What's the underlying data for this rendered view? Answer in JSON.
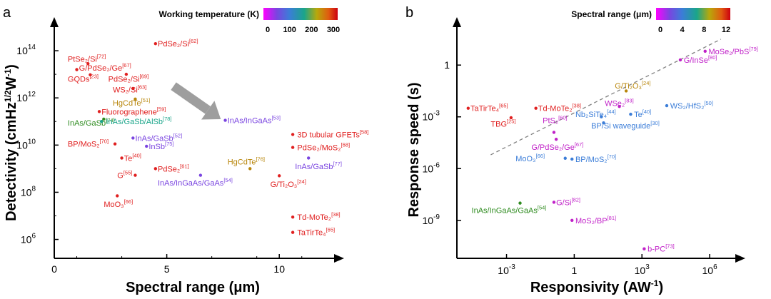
{
  "colors": {
    "red": "#e02020",
    "purple": "#7a45e0",
    "darkgold": "#b8860b",
    "green": "#2e8b1f",
    "teal": "#1aa58a",
    "blue": "#3b7dd8",
    "magenta": "#c020c8",
    "arrow": "#9e9e9e",
    "fitline": "#808080"
  },
  "chart_data": [
    {
      "panel_label": "a",
      "type": "scatter",
      "xlabel": "Spectral range (μm)",
      "ylabel": "Detectivity (cmHz¹ᐟ²W⁻¹)",
      "ylabel_parts": [
        "Detectivity (cmHz",
        "1/2",
        "W",
        "-1",
        ")"
      ],
      "xlim": [
        0,
        12.5
      ],
      "ylim_log10": [
        5.2,
        15
      ],
      "x_ticks": [
        0,
        5,
        10
      ],
      "x_tick_labels": [
        "0",
        "5",
        "10"
      ],
      "y_ticks_exp": [
        6,
        8,
        10,
        12,
        14
      ],
      "y_tick_base": "10",
      "colorbar": {
        "title": "Working temperature (K)",
        "ticks": [
          "0",
          "100",
          "200",
          "300"
        ],
        "range": [
          0,
          300
        ]
      },
      "arrow": {
        "from": [
          5.3,
          12.5
        ],
        "to": [
          7.4,
          11.1
        ]
      },
      "points": [
        {
          "label": "PdSe₂/Si",
          "ref": "[62]",
          "x": 4.5,
          "y_exp": 14.3,
          "color": "red",
          "lx": 4.6,
          "ly": 14.3,
          "anchor": "start"
        },
        {
          "label": "PtSe₂/Si",
          "ref": "[72]",
          "x": 1.5,
          "y_exp": 13.45,
          "color": "red",
          "lx": 0.6,
          "ly": 13.65,
          "anchor": "start"
        },
        {
          "label": "G/PdSe₂/Ge",
          "ref": "[67]",
          "x": 1.0,
          "y_exp": 13.2,
          "color": "red",
          "lx": 1.1,
          "ly": 13.28,
          "anchor": "start"
        },
        {
          "label": "GQDs",
          "ref": "[23]",
          "x": 1.6,
          "y_exp": 12.98,
          "color": "red",
          "lx": 0.6,
          "ly": 12.8,
          "anchor": "start"
        },
        {
          "label": "PdSe₂/Si",
          "ref": "[69]",
          "x": 3.2,
          "y_exp": 13.0,
          "color": "red",
          "lx": 2.4,
          "ly": 12.8,
          "anchor": "start"
        },
        {
          "label": "WS₂/Si",
          "ref": "[63]",
          "x": 3.5,
          "y_exp": 12.4,
          "color": "red",
          "lx": 2.6,
          "ly": 12.35,
          "anchor": "start"
        },
        {
          "label": "HgCdTe",
          "ref": "[51]",
          "x": 3.6,
          "y_exp": 11.95,
          "color": "darkgold",
          "lx": 2.6,
          "ly": 11.8,
          "anchor": "start"
        },
        {
          "label": "InAs/GaSb",
          "ref": "[74]",
          "x": 2.2,
          "y_exp": 11.1,
          "color": "green",
          "lx": 0.6,
          "ly": 10.95,
          "anchor": "start"
        },
        {
          "label": "InAs/GaSb/AlSb",
          "ref": "[78]",
          "x": 2.1,
          "y_exp": 11.0,
          "color": "teal",
          "lx": 2.3,
          "ly": 11.0,
          "anchor": "start"
        },
        {
          "label": "InAs/InGaAs",
          "ref": "[53]",
          "x": 7.6,
          "y_exp": 11.05,
          "color": "purple",
          "lx": 7.7,
          "ly": 11.05,
          "anchor": "start"
        },
        {
          "label": "3D tubular GFETs",
          "ref": "[58]",
          "x": 10.6,
          "y_exp": 10.45,
          "color": "red",
          "lx": 10.8,
          "ly": 10.45,
          "anchor": "start"
        },
        {
          "label": "Fluorographene",
          "ref": "[59]",
          "x": 2.0,
          "y_exp": 11.42,
          "color": "red",
          "lx": 2.1,
          "ly": 11.42,
          "anchor": "start"
        },
        {
          "label": "InAs/GaSb",
          "ref": "[52]",
          "x": 3.5,
          "y_exp": 10.3,
          "color": "purple",
          "lx": 3.6,
          "ly": 10.3,
          "anchor": "start"
        },
        {
          "label": "BP/MoS₂",
          "ref": "[70]",
          "x": 2.7,
          "y_exp": 10.05,
          "color": "red",
          "lx": 0.6,
          "ly": 10.05,
          "anchor": "start"
        },
        {
          "label": "InSb",
          "ref": "[75]",
          "x": 4.1,
          "y_exp": 9.95,
          "color": "purple",
          "lx": 4.2,
          "ly": 9.95,
          "anchor": "start"
        },
        {
          "label": "PdSe₂/MoS₂",
          "ref": "[68]",
          "x": 10.6,
          "y_exp": 9.9,
          "color": "red",
          "lx": 10.8,
          "ly": 9.9,
          "anchor": "start"
        },
        {
          "label": "InAs/GaSb",
          "ref": "[77]",
          "x": 11.3,
          "y_exp": 9.45,
          "color": "purple",
          "lx": 10.7,
          "ly": 9.1,
          "anchor": "start"
        },
        {
          "label": "Te",
          "ref": "[40]",
          "x": 3.0,
          "y_exp": 9.45,
          "color": "red",
          "lx": 3.1,
          "ly": 9.45,
          "anchor": "start"
        },
        {
          "label": "HgCdTe",
          "ref": "[76]",
          "x": 8.7,
          "y_exp": 9.0,
          "color": "darkgold",
          "lx": 7.7,
          "ly": 9.3,
          "anchor": "start"
        },
        {
          "label": "PdSe₂",
          "ref": "[61]",
          "x": 4.5,
          "y_exp": 9.0,
          "color": "red",
          "lx": 4.6,
          "ly": 9.0,
          "anchor": "start"
        },
        {
          "label": "G",
          "ref": "[55]",
          "x": 3.6,
          "y_exp": 8.72,
          "color": "red",
          "lx": 2.8,
          "ly": 8.72,
          "anchor": "start"
        },
        {
          "label": "InAs/InGaAs/GaAs",
          "ref": "[54]",
          "x": 6.5,
          "y_exp": 8.72,
          "color": "purple",
          "lx": 4.6,
          "ly": 8.4,
          "anchor": "start"
        },
        {
          "label": "G/Ti₂O₃",
          "ref": "[24]",
          "x": 10.0,
          "y_exp": 8.7,
          "color": "red",
          "lx": 9.6,
          "ly": 8.35,
          "anchor": "start"
        },
        {
          "label": "MoO₃",
          "ref": "[66]",
          "x": 2.8,
          "y_exp": 7.85,
          "color": "red",
          "lx": 2.2,
          "ly": 7.5,
          "anchor": "start"
        },
        {
          "label": "Td-MoTe₂",
          "ref": "[38]",
          "x": 10.6,
          "y_exp": 6.95,
          "color": "red",
          "lx": 10.8,
          "ly": 6.95,
          "anchor": "start"
        },
        {
          "label": "TaTirTe₄",
          "ref": "[65]",
          "x": 10.6,
          "y_exp": 6.3,
          "color": "red",
          "lx": 10.8,
          "ly": 6.3,
          "anchor": "start"
        }
      ]
    },
    {
      "panel_label": "b",
      "type": "scatter",
      "xlabel": "Responsivity (AW⁻¹)",
      "xlabel_parts": [
        "Responsivity (AW",
        "-1",
        ")"
      ],
      "ylabel": "Response speed (s)",
      "xlim_log10": [
        -5.2,
        7.2
      ],
      "ylim_log10": [
        -11.2,
        2.2
      ],
      "x_ticks_exp": [
        -3,
        0,
        3,
        6
      ],
      "x_tick_labels": [
        "10",
        "1",
        "10",
        "10"
      ],
      "y_ticks_exp": [
        -9,
        -6,
        -3,
        0
      ],
      "y_tick_labels": [
        "10",
        "10",
        "10",
        "1"
      ],
      "tick_base": "10",
      "colorbar": {
        "title": "Spectral range (μm)",
        "ticks": [
          "0",
          "4",
          "8",
          "12"
        ],
        "range": [
          0,
          12
        ]
      },
      "trend_line": {
        "from_exp": [
          -3.7,
          -5.2
        ],
        "to_exp": [
          6.5,
          1.5
        ]
      },
      "points": [
        {
          "label": "MoSe₂/PbS",
          "ref": "[79]",
          "x_exp": 5.8,
          "y_exp": 0.8,
          "color": "magenta",
          "lx": 5.95,
          "ly": 0.8,
          "anchor": "start"
        },
        {
          "label": "G/InSe",
          "ref": "[80]",
          "x_exp": 4.7,
          "y_exp": 0.3,
          "color": "magenta",
          "lx": 4.85,
          "ly": 0.3,
          "anchor": "start"
        },
        {
          "label": "G/Ti₂O₃",
          "ref": "[24]",
          "x_exp": 2.3,
          "y_exp": -1.5,
          "color": "darkgold",
          "lx": 1.8,
          "ly": -1.2,
          "anchor": "start"
        },
        {
          "label": "WSe₂",
          "ref": "[83]",
          "x_exp": 2.0,
          "y_exp": -2.4,
          "color": "magenta",
          "lx": 1.35,
          "ly": -2.2,
          "anchor": "start"
        },
        {
          "label": "WS₂/HfS₂",
          "ref": "[50]",
          "x_exp": 4.1,
          "y_exp": -2.35,
          "color": "blue",
          "lx": 4.25,
          "ly": -2.35,
          "anchor": "start"
        },
        {
          "label": "TaTirTe₄",
          "ref": "[65]",
          "x_exp": -4.7,
          "y_exp": -2.5,
          "color": "red",
          "lx": -4.6,
          "ly": -2.5,
          "anchor": "start"
        },
        {
          "label": "Td-MoTe₂",
          "ref": "[38]",
          "x_exp": -1.7,
          "y_exp": -2.5,
          "color": "red",
          "lx": -1.6,
          "ly": -2.5,
          "anchor": "start"
        },
        {
          "label": "TBG",
          "ref": "[25]",
          "x_exp": -2.8,
          "y_exp": -3.05,
          "color": "red",
          "lx": -3.7,
          "ly": -3.4,
          "anchor": "start"
        },
        {
          "label": "Nb₂SiTe₄",
          "ref": "[44]",
          "x_exp": 1.2,
          "y_exp": -3.0,
          "color": "blue",
          "lx": 0.05,
          "ly": -2.85,
          "anchor": "start"
        },
        {
          "label": "Te",
          "ref": "[40]",
          "x_exp": 2.5,
          "y_exp": -2.85,
          "color": "blue",
          "lx": 2.65,
          "ly": -2.85,
          "anchor": "start"
        },
        {
          "label": "PtS₂",
          "ref": "[60]",
          "x_exp": -0.9,
          "y_exp": -3.9,
          "color": "magenta",
          "lx": -1.4,
          "ly": -3.2,
          "anchor": "start"
        },
        {
          "label": "BP/Si waveguide",
          "ref": "[30]",
          "x_exp": 1.3,
          "y_exp": -3.35,
          "color": "blue",
          "lx": 0.75,
          "ly": -3.5,
          "anchor": "start"
        },
        {
          "label": "G/PdSe₂/Ge",
          "ref": "[67]",
          "x_exp": -0.8,
          "y_exp": -4.3,
          "color": "magenta",
          "lx": -1.9,
          "ly": -4.75,
          "anchor": "start"
        },
        {
          "label": "MoO₃",
          "ref": "[66]",
          "x_exp": -0.4,
          "y_exp": -5.4,
          "color": "blue",
          "lx": -2.6,
          "ly": -5.4,
          "anchor": "start"
        },
        {
          "label": "BP/MoS₂",
          "ref": "[70]",
          "x_exp": -0.1,
          "y_exp": -5.45,
          "color": "blue",
          "lx": 0.05,
          "ly": -5.45,
          "anchor": "start"
        },
        {
          "label": "InAs/InGaAs/GaAs",
          "ref": "[54]",
          "x_exp": -2.4,
          "y_exp": -8.0,
          "color": "green",
          "lx": -4.55,
          "ly": -8.4,
          "anchor": "start"
        },
        {
          "label": "G/Si",
          "ref": "[82]",
          "x_exp": -0.9,
          "y_exp": -7.95,
          "color": "magenta",
          "lx": -0.8,
          "ly": -7.95,
          "anchor": "start"
        },
        {
          "label": "MoS₂/BP",
          "ref": "[81]",
          "x_exp": -0.1,
          "y_exp": -9.0,
          "color": "magenta",
          "lx": 0.05,
          "ly": -9.0,
          "anchor": "start"
        },
        {
          "label": "b-PC",
          "ref": "[73]",
          "x_exp": 3.1,
          "y_exp": -10.65,
          "color": "magenta",
          "lx": 3.25,
          "ly": -10.65,
          "anchor": "start"
        }
      ]
    }
  ]
}
